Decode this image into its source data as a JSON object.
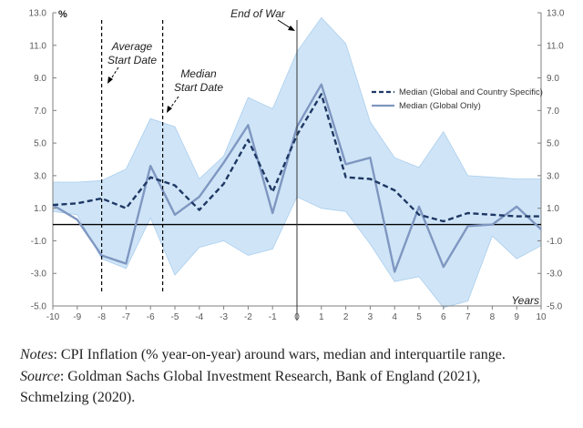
{
  "chart_data": {
    "type": "line",
    "y_unit": "%",
    "x_axis_title": "Years",
    "x": [
      -10,
      -9,
      -8,
      -7,
      -6,
      -5,
      -4,
      -3,
      -2,
      -1,
      0,
      1,
      2,
      3,
      4,
      5,
      6,
      7,
      8,
      9,
      10
    ],
    "ylim": [
      -5.0,
      13.0
    ],
    "y_ticks": [
      "13.0",
      "11.0",
      "9.0",
      "7.0",
      "5.0",
      "3.0",
      "1.0",
      "-1.0",
      "-3.0",
      "-5.0"
    ],
    "x_ticks": [
      "-10",
      "-9",
      "-8",
      "-7",
      "-6",
      "-5",
      "-4",
      "-3",
      "-2",
      "-1",
      "0",
      "1",
      "2",
      "3",
      "4",
      "5",
      "6",
      "7",
      "8",
      "9",
      "10"
    ],
    "series": [
      {
        "name": "Median (Global and Country Specific)",
        "style": "dashed",
        "values": [
          1.2,
          1.3,
          1.6,
          1.0,
          2.9,
          2.4,
          0.9,
          2.5,
          5.2,
          2.0,
          5.5,
          8.0,
          2.9,
          2.8,
          2.1,
          0.6,
          0.2,
          0.7,
          0.6,
          0.5,
          0.5
        ]
      },
      {
        "name": "Median (Global Only)",
        "style": "solid",
        "values": [
          1.2,
          0.3,
          -1.9,
          -2.4,
          3.6,
          0.6,
          1.7,
          3.8,
          6.1,
          0.7,
          6.0,
          8.6,
          3.7,
          4.1,
          -2.9,
          1.1,
          -2.6,
          -0.1,
          0.0,
          1.1,
          -0.3
        ]
      },
      {
        "name": "Interquartile range upper",
        "values": [
          2.6,
          2.6,
          2.7,
          3.4,
          6.5,
          6.0,
          2.8,
          4.2,
          7.8,
          7.1,
          10.6,
          12.7,
          11.1,
          6.3,
          4.1,
          3.5,
          5.7,
          3.0,
          2.9,
          2.8,
          2.8
        ]
      },
      {
        "name": "Interquartile range lower",
        "values": [
          0.8,
          0.6,
          -2.1,
          -2.7,
          0.4,
          -3.1,
          -1.4,
          -1.0,
          -1.9,
          -1.5,
          1.7,
          1.0,
          0.8,
          -1.2,
          -3.5,
          -3.2,
          -5.1,
          -4.7,
          -0.7,
          -2.1,
          -1.3
        ]
      }
    ],
    "annotations": [
      {
        "text": [
          "Average",
          "Start Date"
        ],
        "x": -8
      },
      {
        "text": [
          "Median",
          "Start Date"
        ],
        "x": -5.5
      },
      {
        "text": [
          "End of War"
        ],
        "x": 0
      }
    ],
    "colors": {
      "band": "#cfe5f7",
      "band_edge": "#a9cdee",
      "dashed": "#1f3864",
      "solid": "#7f97c1"
    }
  },
  "notes": {
    "notes_label": "Notes",
    "notes_text": ": CPI Inflation (% year-on-year) around wars, median and interquartile range.",
    "source_label": "Source",
    "source_text": ": Goldman Sachs Global Investment Research, Bank of England (2021),",
    "source_text_2": "Schmelzing (2020)."
  }
}
